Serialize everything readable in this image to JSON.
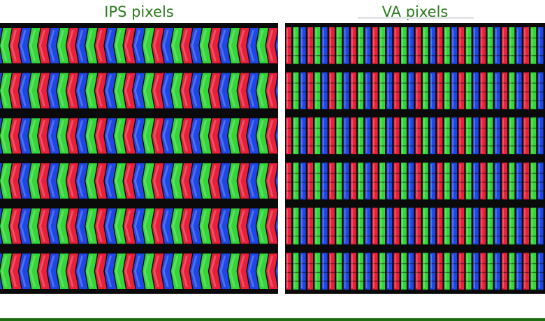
{
  "panels": [
    {
      "id": "ips",
      "title": "IPS pixels",
      "subpixel_order": [
        "blue",
        "green",
        "red"
      ],
      "subpixel_shape": "chevron",
      "pixel_rows": 6
    },
    {
      "id": "va",
      "title": "VA pixels",
      "subpixel_order": [
        "red",
        "green",
        "blue"
      ],
      "subpixel_shape": "segmented-column",
      "pixel_rows": 6
    }
  ],
  "colors": {
    "title_text": "#2e7a1f",
    "red": "#e8203a",
    "green": "#34d63a",
    "blue": "#1f47e6",
    "gap": "#0a0a0a",
    "rule": "#1f6e12"
  }
}
